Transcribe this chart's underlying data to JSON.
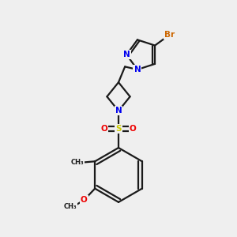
{
  "bg_color": "#efefef",
  "bond_color": "#1a1a1a",
  "bond_width": 1.6,
  "atom_colors": {
    "N": "#0000ee",
    "S": "#cccc00",
    "O": "#ee0000",
    "Br": "#cc6600",
    "C": "#1a1a1a"
  },
  "font_size": 7.5,
  "dbl_off": 0.11
}
